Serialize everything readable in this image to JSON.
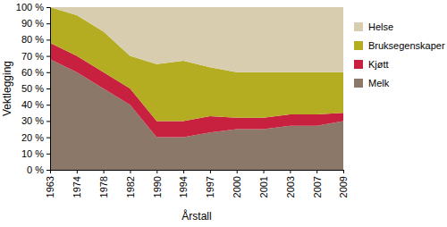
{
  "chart_data": {
    "type": "area",
    "stacked": true,
    "legend": "right",
    "grid": false,
    "x_label": "Årstall",
    "y_label": "Vektlegging",
    "categories": [
      "1963",
      "1974",
      "1978",
      "1982",
      "1990",
      "1994",
      "1997",
      "2000",
      "2001",
      "2003",
      "2007",
      "2009"
    ],
    "ylim": [
      0,
      100
    ],
    "yticks": [
      {
        "value": 0,
        "label": "0 %"
      },
      {
        "value": 10,
        "label": "10 %"
      },
      {
        "value": 20,
        "label": "20 %"
      },
      {
        "value": 30,
        "label": "30 %"
      },
      {
        "value": 40,
        "label": "40 %"
      },
      {
        "value": 50,
        "label": "50 %"
      },
      {
        "value": 60,
        "label": "60 %"
      },
      {
        "value": 70,
        "label": "70 %"
      },
      {
        "value": 80,
        "label": "80 %"
      },
      {
        "value": 90,
        "label": "90 %"
      },
      {
        "value": 100,
        "label": "100 %"
      }
    ],
    "series": [
      {
        "name": "Melk",
        "color": "#8c7868",
        "values": [
          68,
          60,
          50,
          40,
          20,
          20,
          23,
          25,
          25,
          27,
          27,
          30
        ]
      },
      {
        "name": "Kjøtt",
        "color": "#c8203f",
        "values": [
          10,
          10,
          10,
          10,
          10,
          10,
          10,
          7,
          7,
          7,
          7,
          5
        ]
      },
      {
        "name": "Bruksegenskaper",
        "color": "#b4ad22",
        "values": [
          22,
          25,
          25,
          20,
          35,
          37,
          30,
          28,
          28,
          26,
          26,
          25
        ]
      },
      {
        "name": "Helse",
        "color": "#d9cdb0",
        "values": [
          0,
          5,
          15,
          30,
          35,
          33,
          37,
          40,
          40,
          40,
          40,
          40
        ]
      }
    ]
  }
}
